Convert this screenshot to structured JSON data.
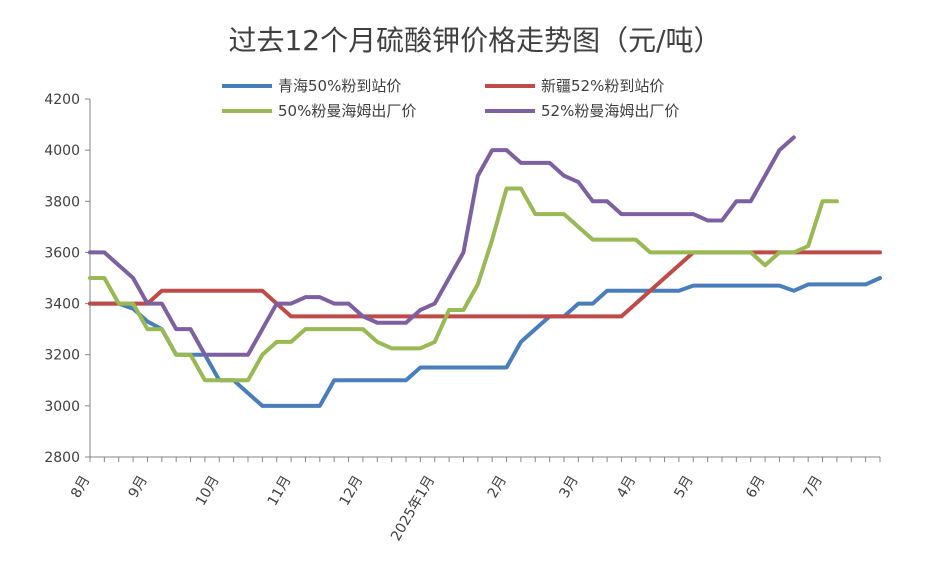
{
  "chart_data": {
    "type": "line",
    "title": "过去12个月硫酸钾价格走势图（元/吨）",
    "xlabel": "",
    "ylabel": "",
    "ylim": [
      2800,
      4200
    ],
    "yticks": [
      2800,
      3000,
      3200,
      3400,
      3600,
      3800,
      4000,
      4200
    ],
    "grid": false,
    "legend_position": "top",
    "x_tick_labels": [
      "8月",
      "9月",
      "10月",
      "11月",
      "12月",
      "2025年1月",
      "2月",
      "3月",
      "4月",
      "5月",
      "6月",
      "7月"
    ],
    "x_tick_positions": [
      0,
      4,
      9,
      14,
      19,
      24,
      29,
      34,
      38,
      42,
      47,
      51
    ],
    "series": [
      {
        "name": "青海50%粉到站价",
        "color": "#4a7ebb",
        "values": [
          3400,
          3400,
          3400,
          3380,
          3330,
          3300,
          3200,
          3200,
          3200,
          3100,
          3100,
          3050,
          3000,
          3000,
          3000,
          3000,
          3000,
          3100,
          3100,
          3100,
          3100,
          3100,
          3100,
          3150,
          3150,
          3150,
          3150,
          3150,
          3150,
          3150,
          3250,
          3300,
          3350,
          3350,
          3400,
          3400,
          3450,
          3450,
          3450,
          3450,
          3450,
          3450,
          3470,
          3470,
          3470,
          3470,
          3470,
          3470,
          3470,
          3450,
          3475,
          3475,
          3475,
          3475,
          3475,
          3500
        ]
      },
      {
        "name": "新疆52%粉到站价",
        "color": "#be4b48",
        "values": [
          3400,
          3400,
          3400,
          3400,
          3400,
          3450,
          3450,
          3450,
          3450,
          3450,
          3450,
          3450,
          3450,
          3400,
          3350,
          3350,
          3350,
          3350,
          3350,
          3350,
          3350,
          3350,
          3350,
          3350,
          3350,
          3350,
          3350,
          3350,
          3350,
          3350,
          3350,
          3350,
          3350,
          3350,
          3350,
          3350,
          3350,
          3350,
          3400,
          3450,
          3500,
          3550,
          3600,
          3600,
          3600,
          3600,
          3600,
          3600,
          3600,
          3600,
          3600,
          3600,
          3600,
          3600,
          3600,
          3600
        ]
      },
      {
        "name": "50%粉曼海姆出厂价",
        "color": "#98b954",
        "values": [
          3500,
          3500,
          3400,
          3400,
          3300,
          3300,
          3200,
          3200,
          3100,
          3100,
          3100,
          3100,
          3200,
          3250,
          3250,
          3300,
          3300,
          3300,
          3300,
          3300,
          3250,
          3225,
          3225,
          3225,
          3250,
          3375,
          3375,
          3475,
          3650,
          3850,
          3850,
          3750,
          3750,
          3750,
          3700,
          3650,
          3650,
          3650,
          3650,
          3600,
          3600,
          3600,
          3600,
          3600,
          3600,
          3600,
          3600,
          3550,
          3600,
          3600,
          3625,
          3800,
          3800
        ]
      },
      {
        "name": "52%粉曼海姆出厂价",
        "color": "#7d60a0",
        "values": [
          3600,
          3600,
          3550,
          3500,
          3400,
          3400,
          3300,
          3300,
          3200,
          3200,
          3200,
          3200,
          3300,
          3400,
          3400,
          3425,
          3425,
          3400,
          3400,
          3350,
          3325,
          3325,
          3325,
          3375,
          3400,
          3500,
          3600,
          3900,
          4000,
          4000,
          3950,
          3950,
          3950,
          3900,
          3875,
          3800,
          3800,
          3750,
          3750,
          3750,
          3750,
          3750,
          3750,
          3725,
          3725,
          3800,
          3800,
          3900,
          4000,
          4050
        ]
      }
    ]
  }
}
